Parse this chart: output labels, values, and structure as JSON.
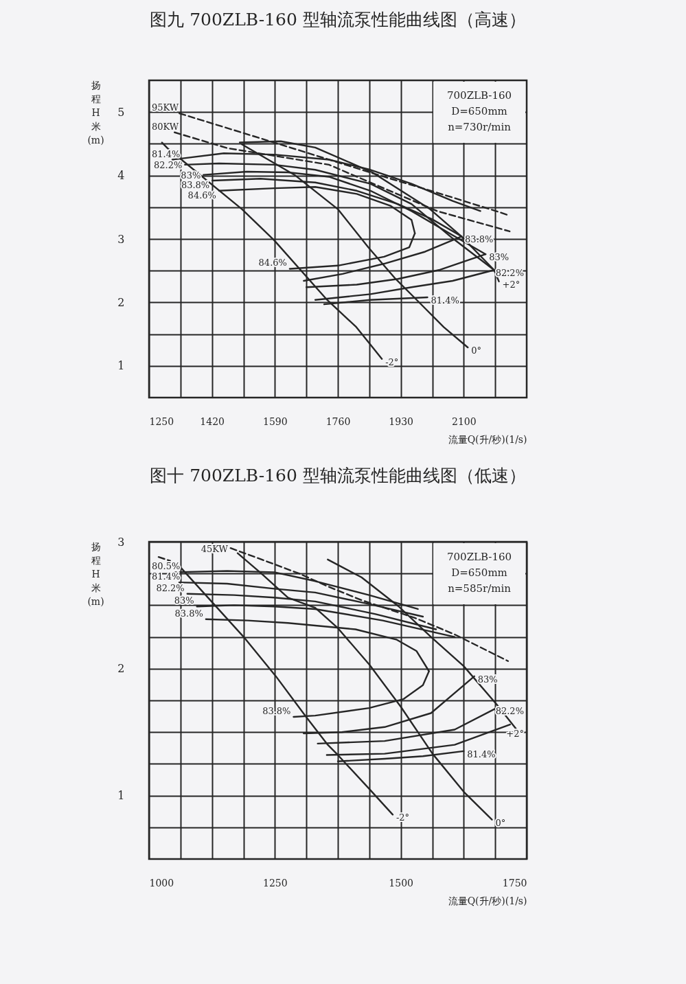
{
  "chart_data": [
    {
      "type": "line",
      "title": "图九 700ZLB-160 型轴流泵性能曲线图（高速）",
      "xlabel": "流量Q(升/秒)(1/s)",
      "ylabel": "扬程H米(m)",
      "xlim": [
        1250,
        2270
      ],
      "xticks": [
        1250,
        {
          "value": 1335,
          "label": null
        },
        1420,
        {
          "value": 1505,
          "label": null
        },
        1590,
        {
          "value": 1675,
          "label": null
        },
        1760,
        {
          "value": 1845,
          "label": null
        },
        1930,
        {
          "value": 2015,
          "label": null
        },
        2100,
        {
          "value": 2185,
          "label": null
        }
      ],
      "ylim": [
        0.5,
        5.5
      ],
      "yticks": [
        1,
        {
          "value": 1.5,
          "label": null
        },
        2,
        {
          "value": 2.5,
          "label": null
        },
        3,
        {
          "value": 3.5,
          "label": null
        },
        4,
        {
          "value": 4.5,
          "label": null
        },
        5
      ],
      "grid": true,
      "series": [
        {
          "name": "95KW",
          "color": "#262626",
          "line_style": "dashed",
          "x": [
            1332,
            1588,
            1885,
            2028,
            2187,
            2223
          ],
          "values": [
            4.98,
            4.52,
            3.98,
            3.73,
            3.44,
            3.37
          ]
        },
        {
          "name": "80KW",
          "color": "#262626",
          "line_style": "dashed",
          "x": [
            1319,
            1463,
            1736,
            2028,
            2224
          ],
          "values": [
            4.68,
            4.43,
            4.17,
            3.44,
            3.12
          ]
        },
        {
          "name": "-2°",
          "color": "#262626",
          "x": [
            1879,
            1810,
            1731,
            1588,
            1501,
            1300,
            1285
          ],
          "values": [
            1.11,
            1.61,
            2.04,
            2.98,
            3.47,
            4.43,
            4.52
          ]
        },
        {
          "name": "0°",
          "color": "#262626",
          "x": [
            2111,
            2046,
            1978,
            1916,
            1842,
            1760,
            1643,
            1501
          ],
          "values": [
            1.29,
            1.61,
            2.01,
            2.37,
            2.87,
            3.47,
            4.01,
            4.49
          ]
        },
        {
          "name": "+2°",
          "color": "#262626",
          "x": [
            2195,
            2182,
            2094,
            2009,
            1853,
            1699,
            1606,
            1495
          ],
          "values": [
            2.33,
            2.51,
            3.04,
            3.47,
            4.05,
            4.44,
            4.54,
            4.52
          ]
        },
        {
          "name": "81.4%",
          "color": "#262626",
          "x": [
            1313,
            1452,
            1588,
            1736,
            1848,
            1959,
            2070,
            2145
          ],
          "values": [
            4.25,
            4.35,
            4.33,
            4.25,
            4.09,
            3.87,
            3.6,
            3.44
          ]
        },
        {
          "name": "81.4%",
          "color": "#262626",
          "x": [
            2002,
            1848,
            1723
          ],
          "values": [
            2.08,
            2.04,
            1.97
          ]
        },
        {
          "name": "82.2%",
          "color": "#262626",
          "x": [
            1347,
            1439,
            1588,
            1699,
            1848,
            1959,
            2070,
            2182
          ],
          "values": [
            4.17,
            4.19,
            4.17,
            4.09,
            3.87,
            3.55,
            3.01,
            2.51
          ]
        },
        {
          "name": "82.2%",
          "color": "#262626",
          "x": [
            2182,
            2070,
            1959,
            1848,
            1699
          ],
          "values": [
            2.51,
            2.34,
            2.24,
            2.13,
            2.04
          ]
        },
        {
          "name": "83%",
          "color": "#262626",
          "x": [
            1397,
            1514,
            1625,
            1736,
            1848,
            1959,
            2070,
            2159
          ],
          "values": [
            4.01,
            4.06,
            4.05,
            3.98,
            3.76,
            3.44,
            3.06,
            2.76
          ]
        },
        {
          "name": "83%",
          "color": "#262626",
          "x": [
            2159,
            2033,
            1922,
            1811,
            1675
          ],
          "values": [
            2.76,
            2.51,
            2.37,
            2.28,
            2.24
          ]
        },
        {
          "name": "83.8%",
          "color": "#262626",
          "x": [
            1421,
            1551,
            1699,
            1811,
            1922,
            2015,
            2094
          ],
          "values": [
            3.92,
            3.95,
            3.89,
            3.76,
            3.55,
            3.31,
            3.04
          ]
        },
        {
          "name": "83.8%",
          "color": "#262626",
          "x": [
            2094,
            1996,
            1885,
            1773,
            1668
          ],
          "values": [
            3.04,
            2.8,
            2.61,
            2.45,
            2.34
          ]
        },
        {
          "name": "84.6%",
          "color": "#262626",
          "x": [
            1439,
            1588,
            1699,
            1811,
            1903,
            1959,
            1968
          ],
          "values": [
            3.76,
            3.8,
            3.82,
            3.71,
            3.52,
            3.3,
            3.09
          ]
        },
        {
          "name": "84.6%",
          "color": "#262626",
          "x": [
            1630,
            1760,
            1885,
            1953,
            1968
          ],
          "values": [
            2.53,
            2.58,
            2.72,
            2.87,
            3.09
          ]
        }
      ],
      "annotations": [
        "700ZLB-160",
        "D=650mm",
        "n=730r/min"
      ]
    },
    {
      "type": "line",
      "title": "图十 700ZLB-160 型轴流泵性能曲线图（低速）",
      "xlabel": "流量Q(升/秒)(1/s)",
      "ylabel": "扬程H米(m)",
      "xlim": [
        1000,
        1750
      ],
      "xticks": [
        1000,
        {
          "value": 1062.5,
          "label": null
        },
        {
          "value": 1125,
          "label": null
        },
        {
          "value": 1187.5,
          "label": null
        },
        1250,
        {
          "value": 1312.5,
          "label": null
        },
        {
          "value": 1375,
          "label": null
        },
        {
          "value": 1437.5,
          "label": null
        },
        1500,
        {
          "value": 1562.5,
          "label": null
        },
        {
          "value": 1625,
          "label": null
        },
        {
          "value": 1687.5,
          "label": null
        },
        1750
      ],
      "ylim": [
        0.5,
        3
      ],
      "yticks": [
        {
          "value": 0.75,
          "label": null
        },
        1,
        {
          "value": 1.25,
          "label": null
        },
        {
          "value": 1.5,
          "label": null
        },
        {
          "value": 1.75,
          "label": null
        },
        2,
        {
          "value": 2.25,
          "label": null
        },
        {
          "value": 2.5,
          "label": null
        },
        {
          "value": 2.75,
          "label": null
        },
        3
      ],
      "grid": true,
      "series": [
        {
          "name": "45KW",
          "color": "#262626",
          "line_style": "dashed",
          "x": [
            1162,
            1224,
            1298,
            1354,
            1422,
            1528,
            1607,
            1713
          ],
          "values": [
            2.95,
            2.86,
            2.75,
            2.65,
            2.54,
            2.4,
            2.27,
            2.06
          ]
        },
        {
          "color": "#262626",
          "line_style": "dashed",
          "x": [
            1019,
            1042
          ],
          "values": [
            2.88,
            2.85
          ]
        },
        {
          "name": "-2°",
          "color": "#262626",
          "x": [
            1484,
            1438,
            1375,
            1355,
            1312,
            1252,
            1188,
            1060
          ],
          "values": [
            0.85,
            1.05,
            1.32,
            1.4,
            1.62,
            1.94,
            2.25,
            2.81
          ]
        },
        {
          "name": "0°",
          "color": "#262626",
          "x": [
            1681,
            1625,
            1563,
            1500,
            1438,
            1375,
            1330,
            1276,
            1223,
            1176
          ],
          "values": [
            0.81,
            1.03,
            1.33,
            1.7,
            2.03,
            2.32,
            2.48,
            2.56,
            2.75,
            2.91
          ]
        },
        {
          "name": "+2°",
          "color": "#262626",
          "x": [
            1732,
            1690,
            1625,
            1560,
            1496,
            1422,
            1355
          ],
          "values": [
            1.51,
            1.72,
            2.02,
            2.25,
            2.49,
            2.72,
            2.86
          ]
        },
        {
          "name": "80.5%",
          "color": "#262626",
          "x": [
            1051,
            1155,
            1249,
            1330,
            1437,
            1534
          ],
          "values": [
            2.76,
            2.77,
            2.76,
            2.69,
            2.58,
            2.47
          ]
        },
        {
          "color": "#262626",
          "x": [
            1717,
            1607,
            1468,
            1353
          ],
          "values": [
            1.56,
            1.4,
            1.33,
            1.32
          ]
        },
        {
          "name": "81.4%",
          "color": "#262626",
          "x": [
            1060,
            1155,
            1249,
            1330,
            1437,
            1544
          ],
          "values": [
            2.68,
            2.67,
            2.63,
            2.6,
            2.51,
            2.41
          ]
        },
        {
          "name": "81.4%",
          "color": "#262626",
          "x": [
            1625,
            1544,
            1468,
            1375
          ],
          "values": [
            1.35,
            1.31,
            1.29,
            1.27
          ]
        },
        {
          "name": "82.2%",
          "color": "#262626",
          "x": [
            1076,
            1169,
            1249,
            1330,
            1450,
            1570
          ],
          "values": [
            2.59,
            2.58,
            2.56,
            2.53,
            2.43,
            2.31
          ]
        },
        {
          "name": "82.2%",
          "color": "#262626",
          "x": [
            1690,
            1607,
            1468,
            1335
          ],
          "values": [
            1.69,
            1.52,
            1.43,
            1.41
          ]
        },
        {
          "name": "83%",
          "color": "#262626",
          "x": [
            1095,
            1169,
            1249,
            1330,
            1464,
            1607
          ],
          "values": [
            2.49,
            2.5,
            2.49,
            2.47,
            2.38,
            2.25
          ]
        },
        {
          "name": "83%",
          "color": "#262626",
          "x": [
            1646,
            1560,
            1468,
            1383,
            1307
          ],
          "values": [
            1.94,
            1.65,
            1.54,
            1.5,
            1.49
          ]
        },
        {
          "name": "83.8%",
          "color": "#262626",
          "x": [
            1113,
            1196,
            1276,
            1330,
            1410,
            1491,
            1531,
            1556
          ],
          "values": [
            2.39,
            2.38,
            2.36,
            2.34,
            2.31,
            2.23,
            2.14,
            1.98
          ]
        },
        {
          "name": "83.8%",
          "color": "#262626",
          "x": [
            1287,
            1330,
            1437,
            1505,
            1544,
            1556
          ],
          "values": [
            1.62,
            1.63,
            1.69,
            1.76,
            1.87,
            1.98
          ]
        }
      ],
      "annotations": [
        "700ZLB-160",
        "D=650mm",
        "n=585r/min"
      ]
    }
  ]
}
